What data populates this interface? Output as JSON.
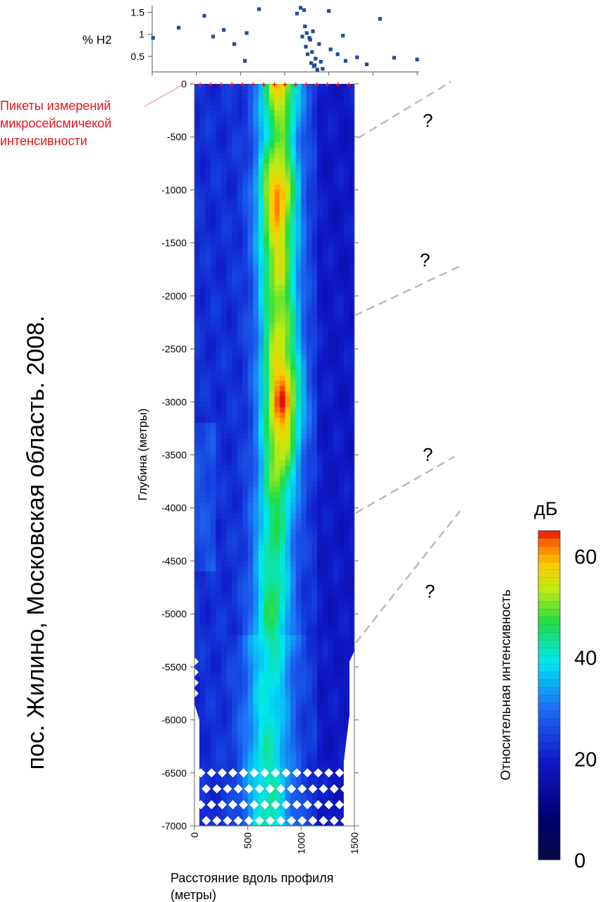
{
  "side_title": "пос. Жилино, Московская область. 2008.",
  "red_note_lines": [
    "Пикеты измерений",
    "микросейсмичекой",
    "интенсивности"
  ],
  "question_mark": "?",
  "colorbar": {
    "unit": "дБ",
    "label": "Относительная интенсивность",
    "ticks": [
      "60",
      "40",
      "20",
      "0"
    ],
    "tick_values": [
      60,
      40,
      20,
      0
    ],
    "range": [
      0,
      65
    ]
  },
  "chart_data": [
    {
      "type": "scatter",
      "ylabel": "% H2",
      "yticks": [
        "1.5",
        "1",
        "0.5"
      ],
      "ytick_values": [
        1.5,
        1,
        0.5
      ],
      "xlim": [
        0,
        1500
      ],
      "ylim": [
        0.15,
        1.65
      ],
      "color": "#1f4e9a",
      "points": [
        [
          5,
          0.92
        ],
        [
          150,
          1.15
        ],
        [
          295,
          1.42
        ],
        [
          345,
          0.95
        ],
        [
          405,
          1.1
        ],
        [
          465,
          0.78
        ],
        [
          525,
          0.4
        ],
        [
          535,
          1.03
        ],
        [
          605,
          1.57
        ],
        [
          820,
          1.47
        ],
        [
          840,
          1.6
        ],
        [
          850,
          0.95
        ],
        [
          860,
          1.55
        ],
        [
          865,
          1.18
        ],
        [
          870,
          0.72
        ],
        [
          875,
          1.03
        ],
        [
          880,
          0.55
        ],
        [
          890,
          0.92
        ],
        [
          895,
          0.88
        ],
        [
          900,
          0.35
        ],
        [
          905,
          0.6
        ],
        [
          910,
          1.07
        ],
        [
          915,
          0.28
        ],
        [
          920,
          0.3
        ],
        [
          925,
          0.45
        ],
        [
          935,
          0.2
        ],
        [
          945,
          0.78
        ],
        [
          955,
          0.38
        ],
        [
          965,
          0.22
        ],
        [
          1000,
          1.53
        ],
        [
          1010,
          0.66
        ],
        [
          1050,
          0.55
        ],
        [
          1080,
          0.97
        ],
        [
          1095,
          0.4
        ],
        [
          1160,
          0.48
        ],
        [
          1215,
          0.32
        ],
        [
          1290,
          1.35
        ],
        [
          1370,
          0.47
        ],
        [
          1500,
          0.43
        ]
      ]
    },
    {
      "type": "heatmap",
      "title": "",
      "xlabel_lines": [
        "Расстояние вдоль профиля",
        "(метры)"
      ],
      "ylabel": "Глубина (метры)",
      "xlim": [
        0,
        1500
      ],
      "ylim": [
        -7000,
        0
      ],
      "xticks": [
        "0",
        "500",
        "1000",
        "1500"
      ],
      "xtick_values": [
        0,
        500,
        1000,
        1500
      ],
      "yticks": [
        "0",
        "-500",
        "-1000",
        "-1500",
        "-2000",
        "-2500",
        "-3000",
        "-3500",
        "-4000",
        "-4500",
        "-5000",
        "-5500",
        "-6000",
        "-6500",
        "-7000"
      ],
      "ytick_values": [
        0,
        -500,
        -1000,
        -1500,
        -2000,
        -2500,
        -3000,
        -3500,
        -4000,
        -4500,
        -5000,
        -5500,
        -6000,
        -6500,
        -7000
      ],
      "picket_count": 15,
      "anomaly_center_profile": {
        "depth": [
          0,
          -500,
          -1000,
          -1500,
          -2000,
          -2500,
          -3000,
          -3500,
          -4000,
          -4500,
          -5000,
          -5500,
          -6000,
          -6500,
          -7000
        ],
        "center_x": [
          800,
          790,
          780,
          780,
          790,
          800,
          820,
          800,
          760,
          740,
          730,
          710,
          690,
          690,
          700
        ],
        "peak_db": [
          58,
          48,
          62,
          56,
          52,
          55,
          64,
          54,
          46,
          44,
          46,
          40,
          40,
          42,
          42
        ]
      }
    }
  ]
}
